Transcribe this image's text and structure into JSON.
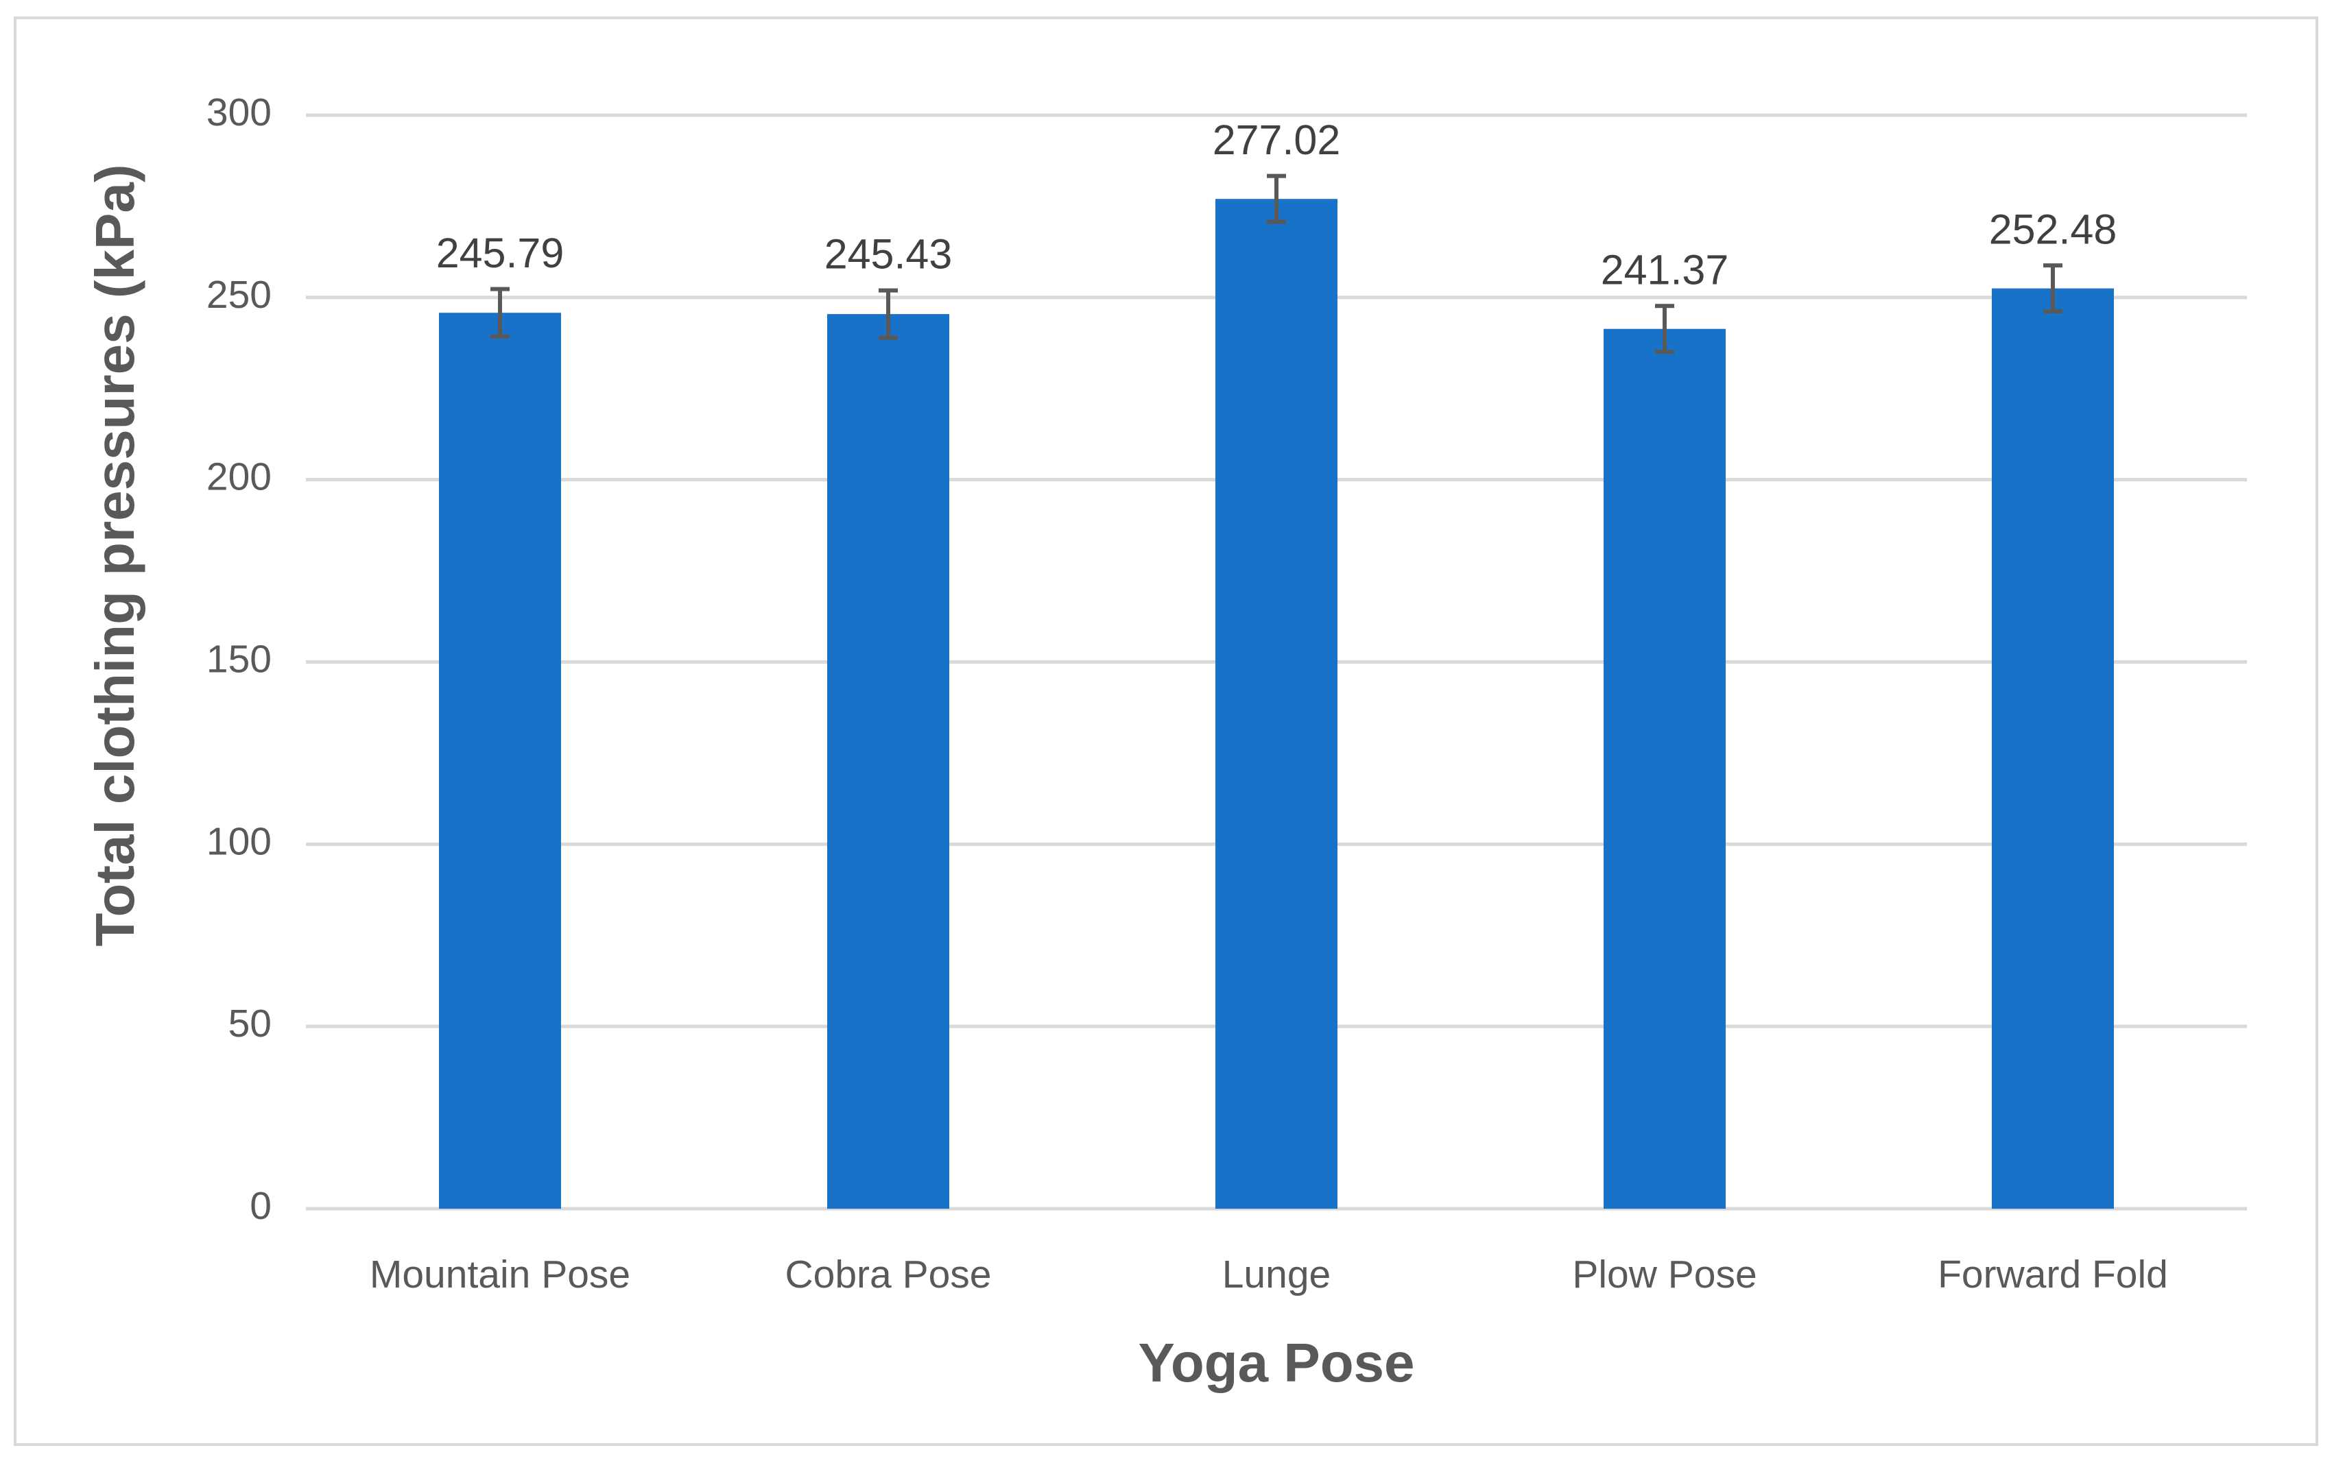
{
  "chart_data": {
    "type": "bar",
    "x_label": "Yoga Pose",
    "y_label": "Total clothing pressures (kPa)",
    "categories": [
      "Mountain Pose",
      "Cobra Pose",
      "Lunge",
      "Plow Pose",
      "Forward Fold"
    ],
    "values": [
      245.79,
      245.43,
      277.02,
      241.37,
      252.48
    ],
    "errors": [
      6.5,
      6.5,
      6.3,
      6.3,
      6.3
    ],
    "color": "#1872c8",
    "ylim": [
      0,
      300
    ],
    "yticks": [
      0,
      50,
      100,
      150,
      200,
      250,
      300
    ],
    "grid": true
  }
}
